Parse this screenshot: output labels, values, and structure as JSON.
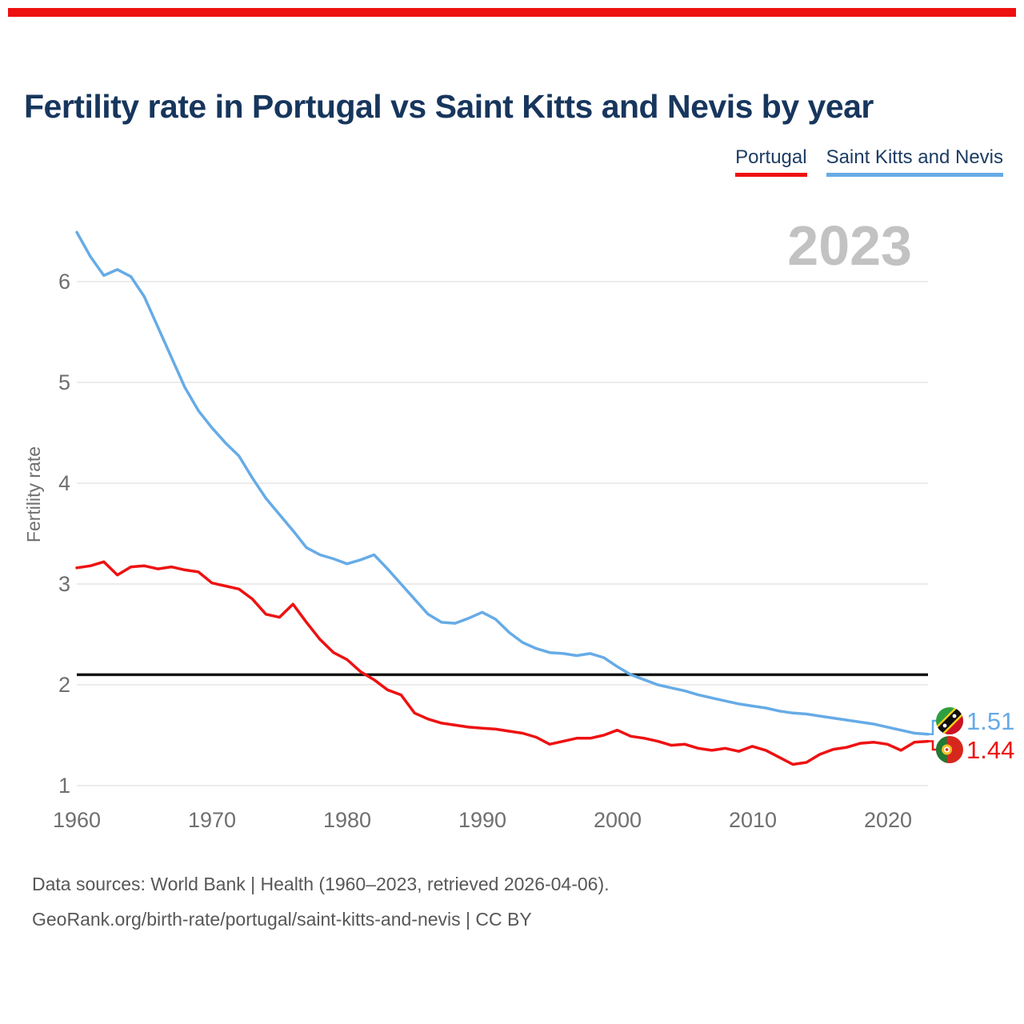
{
  "page": {
    "accent_color": "#ee1111",
    "background": "#ffffff"
  },
  "header": {
    "title": "Fertility rate in Portugal vs Saint Kitts and Nevis by year"
  },
  "chart_data": {
    "type": "line",
    "title": "Fertility rate in Portugal vs Saint Kitts and Nevis by year",
    "xlabel": "",
    "ylabel": "Fertility rate",
    "watermark": "2023",
    "grid": true,
    "legend_position": "top-right",
    "xlim": [
      1960,
      2023
    ],
    "ylim": [
      1,
      6.6
    ],
    "xticks": [
      "1960",
      "1970",
      "1980",
      "1990",
      "2000",
      "2010",
      "2020"
    ],
    "yticks": [
      6,
      5,
      4,
      3,
      2,
      1
    ],
    "x": [
      1960,
      1961,
      1962,
      1963,
      1964,
      1965,
      1966,
      1967,
      1968,
      1969,
      1970,
      1971,
      1972,
      1973,
      1974,
      1975,
      1976,
      1977,
      1978,
      1979,
      1980,
      1981,
      1982,
      1983,
      1984,
      1985,
      1986,
      1987,
      1988,
      1989,
      1990,
      1991,
      1992,
      1993,
      1994,
      1995,
      1996,
      1997,
      1998,
      1999,
      2000,
      2001,
      2002,
      2003,
      2004,
      2005,
      2006,
      2007,
      2008,
      2009,
      2010,
      2011,
      2012,
      2013,
      2014,
      2015,
      2016,
      2017,
      2018,
      2019,
      2020,
      2021,
      2022,
      2023
    ],
    "series": [
      {
        "name": "Portugal",
        "color": "#ee1111",
        "end_label": "1.44",
        "values": [
          3.16,
          3.18,
          3.22,
          3.09,
          3.17,
          3.18,
          3.15,
          3.17,
          3.14,
          3.12,
          3.01,
          2.98,
          2.95,
          2.85,
          2.7,
          2.67,
          2.8,
          2.62,
          2.45,
          2.32,
          2.25,
          2.13,
          2.05,
          1.95,
          1.9,
          1.72,
          1.66,
          1.62,
          1.6,
          1.58,
          1.57,
          1.56,
          1.54,
          1.52,
          1.48,
          1.41,
          1.44,
          1.47,
          1.47,
          1.5,
          1.55,
          1.49,
          1.47,
          1.44,
          1.4,
          1.41,
          1.37,
          1.35,
          1.37,
          1.34,
          1.39,
          1.35,
          1.28,
          1.21,
          1.23,
          1.31,
          1.36,
          1.38,
          1.42,
          1.43,
          1.41,
          1.35,
          1.43,
          1.44
        ]
      },
      {
        "name": "Saint Kitts and Nevis",
        "color": "#66abe6",
        "end_label": "1.51",
        "values": [
          6.49,
          6.25,
          6.06,
          6.12,
          6.05,
          5.85,
          5.55,
          5.25,
          4.95,
          4.72,
          4.55,
          4.4,
          4.27,
          4.05,
          3.85,
          3.69,
          3.53,
          3.36,
          3.29,
          3.25,
          3.2,
          3.24,
          3.29,
          3.15,
          3.0,
          2.85,
          2.7,
          2.62,
          2.61,
          2.66,
          2.72,
          2.65,
          2.52,
          2.42,
          2.36,
          2.32,
          2.31,
          2.29,
          2.31,
          2.27,
          2.18,
          2.1,
          2.05,
          2.0,
          1.97,
          1.94,
          1.9,
          1.87,
          1.84,
          1.81,
          1.79,
          1.77,
          1.74,
          1.72,
          1.71,
          1.69,
          1.67,
          1.65,
          1.63,
          1.61,
          1.58,
          1.55,
          1.52,
          1.51
        ]
      }
    ],
    "reference_line": {
      "value": 2.1,
      "color": "#141414"
    }
  },
  "footer": {
    "line1": "Data sources: World Bank | Health (1960–2023, retrieved 2026-04-06).",
    "line2": "GeoRank.org/birth-rate/portugal/saint-kitts-and-nevis | CC BY"
  }
}
